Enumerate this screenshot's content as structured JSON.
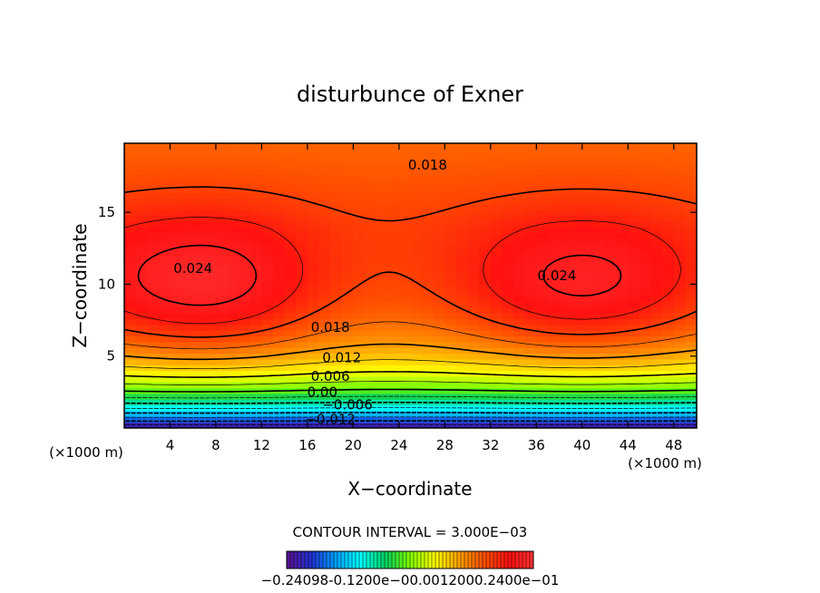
{
  "chart_data": {
    "type": "contour",
    "title": "disturbunce of Exner",
    "xlabel": "X−coordinate",
    "ylabel": "Z−coordinate",
    "x_unit_left": "(×1000 m)",
    "x_unit_right": "(×1000 m)",
    "xlim": [
      0,
      50
    ],
    "ylim": [
      0,
      19.8
    ],
    "x_ticks": [
      4,
      8,
      12,
      16,
      20,
      24,
      28,
      32,
      36,
      40,
      44,
      48
    ],
    "y_ticks": [
      5,
      10,
      15
    ],
    "contour_interval_text": "CONTOUR INTERVAL = 3.000E−03",
    "contour_labels": [
      {
        "text": "0.018",
        "x": 26.5,
        "y": 18.3
      },
      {
        "text": "0.024",
        "x": 6.0,
        "y": 11.1
      },
      {
        "text": "0.024",
        "x": 37.8,
        "y": 10.6
      },
      {
        "text": "0.018",
        "x": 18.0,
        "y": 7.0
      },
      {
        "text": "0.012",
        "x": 19.0,
        "y": 4.9
      },
      {
        "text": "0.006",
        "x": 18.0,
        "y": 3.6
      },
      {
        "text": "0.00",
        "x": 17.3,
        "y": 2.5
      },
      {
        "text": "−0.006",
        "x": 19.5,
        "y": 1.6
      },
      {
        "text": "−0.012",
        "x": 18.0,
        "y": 0.6
      }
    ],
    "colorbar_tick_text": "−0.24098‐0.1200e−00.0012000.2400e−01",
    "value_range": [
      -0.024,
      0.027
    ],
    "colormap": [
      "#5a1090",
      "#2030d0",
      "#00a0ff",
      "#00ffff",
      "#00d060",
      "#80ff00",
      "#ffff00",
      "#ffa000",
      "#ff5000",
      "#ff1010",
      "#ff3030"
    ]
  }
}
